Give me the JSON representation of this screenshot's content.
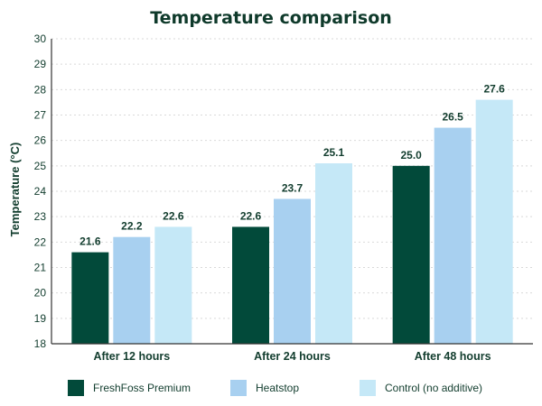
{
  "chart_data": {
    "type": "bar",
    "title": "Temperature comparison",
    "xlabel": "",
    "ylabel": "Temperature (°C)",
    "ylim": [
      18,
      30
    ],
    "yticks": [
      18,
      19,
      20,
      21,
      22,
      23,
      24,
      25,
      26,
      27,
      28,
      29,
      30
    ],
    "categories": [
      "After 12 hours",
      "After 24 hours",
      "After 48 hours"
    ],
    "series": [
      {
        "name": "FreshFoss Premium",
        "color": "#024a3a",
        "values": [
          21.6,
          22.6,
          25.0
        ],
        "labels": [
          "21.6",
          "22.6",
          "25.0"
        ]
      },
      {
        "name": "Heatstop",
        "color": "#a8d0f0",
        "values": [
          22.2,
          23.7,
          26.5
        ],
        "labels": [
          "22.2",
          "23.7",
          "26.5"
        ]
      },
      {
        "name": "Control (no additive)",
        "color": "#c5e8f7",
        "values": [
          22.6,
          25.1,
          27.6
        ],
        "labels": [
          "22.6",
          "25.1",
          "27.6"
        ]
      }
    ],
    "grid": true,
    "legend_position": "bottom"
  }
}
